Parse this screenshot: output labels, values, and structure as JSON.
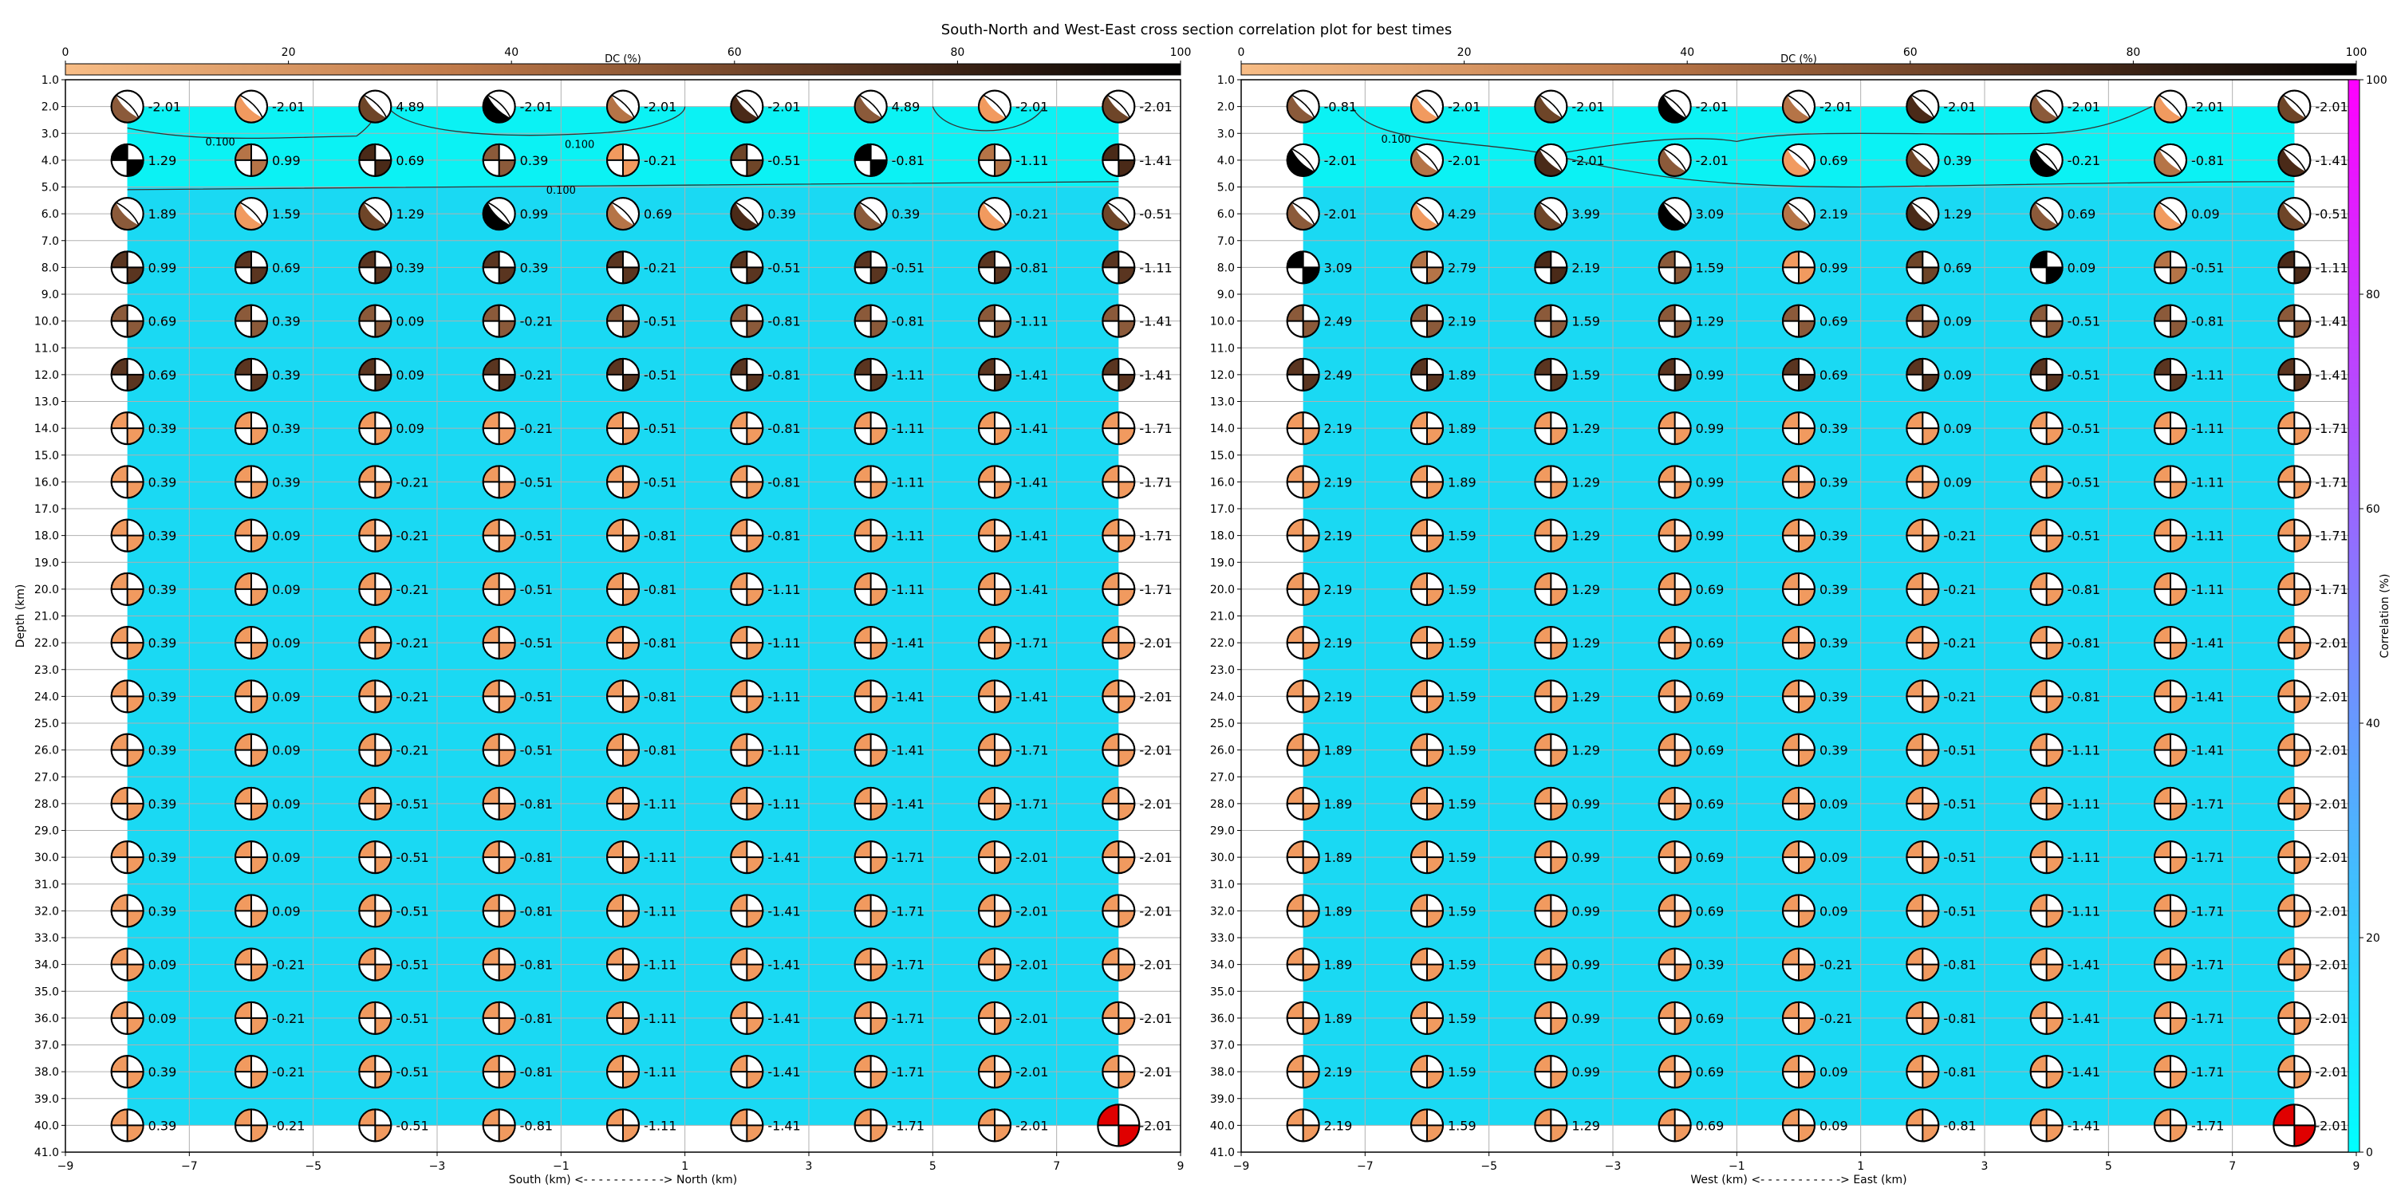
{
  "title": "South-North and West-East cross section correlation plot for best times",
  "depth_ticks": [
    "1.0",
    "2.0",
    "3.0",
    "4.0",
    "5.0",
    "6.0",
    "7.0",
    "8.0",
    "9.0",
    "10.0",
    "11.0",
    "12.0",
    "13.0",
    "14.0",
    "15.0",
    "16.0",
    "17.0",
    "18.0",
    "19.0",
    "20.0",
    "21.0",
    "22.0",
    "23.0",
    "24.0",
    "25.0",
    "26.0",
    "27.0",
    "28.0",
    "29.0",
    "30.0",
    "31.0",
    "32.0",
    "33.0",
    "34.0",
    "35.0",
    "36.0",
    "37.0",
    "38.0",
    "39.0",
    "40.0",
    "41.0"
  ],
  "x_ticks": [
    "−9",
    "−7",
    "−5",
    "−3",
    "−1",
    "1",
    "3",
    "5",
    "7",
    "9"
  ],
  "dc_colorbar": {
    "label": "DC (%)",
    "ticks": [
      "0",
      "20",
      "40",
      "60",
      "80",
      "100"
    ],
    "color_low": "#f8bd86",
    "color_high": "#000000"
  },
  "corr_colorbar": {
    "label": "Correlation (%)",
    "ticks": [
      "0",
      "20",
      "40",
      "60",
      "80",
      "100"
    ],
    "color_low": "#00ffff",
    "color_high": "#ff00ff"
  },
  "colors": {
    "field": "#1ad9f3",
    "field_high": "#0bf2f4",
    "best_solution": "#e00000",
    "grid": "#b0b0b0"
  },
  "chart_data": [
    {
      "type": "heatmap",
      "panel": "South-North",
      "xlabel": "South (km) <- - - - - - - - - - -> North (km)",
      "ylabel": "Depth (km)",
      "xlim": [
        -9,
        9
      ],
      "ylim": [
        41,
        1
      ],
      "x": [
        -8,
        -6,
        -4,
        -2,
        0,
        2,
        4,
        6,
        8
      ],
      "depths": [
        2,
        4,
        6,
        8,
        10,
        12,
        14,
        16,
        18,
        20,
        22,
        24,
        26,
        28,
        30,
        32,
        34,
        36,
        38,
        40
      ],
      "contour_labels": [
        "0.100",
        "0.100",
        "0.100"
      ],
      "best_solution": {
        "x": 8,
        "depth": 40
      },
      "time_shifts": [
        [
          "-2.01",
          "-2.01",
          "4.89",
          "-2.01",
          "-2.01",
          "-2.01",
          "4.89",
          "-2.01",
          "-2.01"
        ],
        [
          "1.29",
          "0.99",
          "0.69",
          "0.39",
          "-0.21",
          "-0.51",
          "-0.81",
          "-1.11",
          "-1.41"
        ],
        [
          "1.89",
          "1.59",
          "1.29",
          "0.99",
          "0.69",
          "0.39",
          "0.39",
          "-0.21",
          "-0.51"
        ],
        [
          "0.99",
          "0.69",
          "0.39",
          "0.39",
          "-0.21",
          "-0.51",
          "-0.51",
          "-0.81",
          "-1.11"
        ],
        [
          "0.69",
          "0.39",
          "0.09",
          "-0.21",
          "-0.51",
          "-0.81",
          "-0.81",
          "-1.11",
          "-1.41"
        ],
        [
          "0.69",
          "0.39",
          "0.09",
          "-0.21",
          "-0.51",
          "-0.81",
          "-1.11",
          "-1.41",
          "-1.41"
        ],
        [
          "0.39",
          "0.39",
          "0.09",
          "-0.21",
          "-0.51",
          "-0.81",
          "-1.11",
          "-1.41",
          "-1.71"
        ],
        [
          "0.39",
          "0.39",
          "-0.21",
          "-0.51",
          "-0.51",
          "-0.81",
          "-1.11",
          "-1.41",
          "-1.71"
        ],
        [
          "0.39",
          "0.09",
          "-0.21",
          "-0.51",
          "-0.81",
          "-0.81",
          "-1.11",
          "-1.41",
          "-1.71"
        ],
        [
          "0.39",
          "0.09",
          "-0.21",
          "-0.51",
          "-0.81",
          "-1.11",
          "-1.11",
          "-1.41",
          "-1.71"
        ],
        [
          "0.39",
          "0.09",
          "-0.21",
          "-0.51",
          "-0.81",
          "-1.11",
          "-1.41",
          "-1.71",
          "-2.01"
        ],
        [
          "0.39",
          "0.09",
          "-0.21",
          "-0.51",
          "-0.81",
          "-1.11",
          "-1.41",
          "-1.41",
          "-2.01"
        ],
        [
          "0.39",
          "0.09",
          "-0.21",
          "-0.51",
          "-0.81",
          "-1.11",
          "-1.41",
          "-1.71",
          "-2.01"
        ],
        [
          "0.39",
          "0.09",
          "-0.51",
          "-0.81",
          "-1.11",
          "-1.11",
          "-1.41",
          "-1.71",
          "-2.01"
        ],
        [
          "0.39",
          "0.09",
          "-0.51",
          "-0.81",
          "-1.11",
          "-1.41",
          "-1.71",
          "-2.01",
          "-2.01"
        ],
        [
          "0.39",
          "0.09",
          "-0.51",
          "-0.81",
          "-1.11",
          "-1.41",
          "-1.71",
          "-2.01",
          "-2.01"
        ],
        [
          "0.09",
          "-0.21",
          "-0.51",
          "-0.81",
          "-1.11",
          "-1.41",
          "-1.71",
          "-2.01",
          "-2.01"
        ],
        [
          "0.09",
          "-0.21",
          "-0.51",
          "-0.81",
          "-1.11",
          "-1.41",
          "-1.71",
          "-2.01",
          "-2.01"
        ],
        [
          "0.39",
          "-0.21",
          "-0.51",
          "-0.81",
          "-1.11",
          "-1.41",
          "-1.71",
          "-2.01",
          "-2.01"
        ],
        [
          "0.39",
          "-0.21",
          "-0.51",
          "-0.81",
          "-1.11",
          "-1.41",
          "-1.71",
          "-2.01",
          "-2.01"
        ]
      ]
    },
    {
      "type": "heatmap",
      "panel": "West-East",
      "xlabel": "West (km) <- - - - - - - - - - -> East (km)",
      "ylabel": "",
      "xlim": [
        -9,
        9
      ],
      "ylim": [
        41,
        1
      ],
      "x": [
        -8,
        -6,
        -4,
        -2,
        0,
        2,
        4,
        6,
        8
      ],
      "depths": [
        2,
        4,
        6,
        8,
        10,
        12,
        14,
        16,
        18,
        20,
        22,
        24,
        26,
        28,
        30,
        32,
        34,
        36,
        38,
        40
      ],
      "contour_labels": [
        "0.100"
      ],
      "best_solution": {
        "x": 8,
        "depth": 40
      },
      "time_shifts": [
        [
          "-0.81",
          "-2.01",
          "-2.01",
          "-2.01",
          "-2.01",
          "-2.01",
          "-2.01",
          "-2.01",
          "-2.01"
        ],
        [
          "-2.01",
          "-2.01",
          "-2.01",
          "-2.01",
          "0.69",
          "0.39",
          "-0.21",
          "-0.81",
          "-1.41"
        ],
        [
          "-2.01",
          "4.29",
          "3.99",
          "3.09",
          "2.19",
          "1.29",
          "0.69",
          "0.09",
          "-0.51"
        ],
        [
          "3.09",
          "2.79",
          "2.19",
          "1.59",
          "0.99",
          "0.69",
          "0.09",
          "-0.51",
          "-1.11"
        ],
        [
          "2.49",
          "2.19",
          "1.59",
          "1.29",
          "0.69",
          "0.09",
          "-0.51",
          "-0.81",
          "-1.41"
        ],
        [
          "2.49",
          "1.89",
          "1.59",
          "0.99",
          "0.69",
          "0.09",
          "-0.51",
          "-1.11",
          "-1.41"
        ],
        [
          "2.19",
          "1.89",
          "1.29",
          "0.99",
          "0.39",
          "0.09",
          "-0.51",
          "-1.11",
          "-1.71"
        ],
        [
          "2.19",
          "1.89",
          "1.29",
          "0.99",
          "0.39",
          "0.09",
          "-0.51",
          "-1.11",
          "-1.71"
        ],
        [
          "2.19",
          "1.59",
          "1.29",
          "0.99",
          "0.39",
          "-0.21",
          "-0.51",
          "-1.11",
          "-1.71"
        ],
        [
          "2.19",
          "1.59",
          "1.29",
          "0.69",
          "0.39",
          "-0.21",
          "-0.81",
          "-1.11",
          "-1.71"
        ],
        [
          "2.19",
          "1.59",
          "1.29",
          "0.69",
          "0.39",
          "-0.21",
          "-0.81",
          "-1.41",
          "-2.01"
        ],
        [
          "2.19",
          "1.59",
          "1.29",
          "0.69",
          "0.39",
          "-0.21",
          "-0.81",
          "-1.41",
          "-2.01"
        ],
        [
          "1.89",
          "1.59",
          "1.29",
          "0.69",
          "0.39",
          "-0.51",
          "-1.11",
          "-1.41",
          "-2.01"
        ],
        [
          "1.89",
          "1.59",
          "0.99",
          "0.69",
          "0.09",
          "-0.51",
          "-1.11",
          "-1.71",
          "-2.01"
        ],
        [
          "1.89",
          "1.59",
          "0.99",
          "0.69",
          "0.09",
          "-0.51",
          "-1.11",
          "-1.71",
          "-2.01"
        ],
        [
          "1.89",
          "1.59",
          "0.99",
          "0.69",
          "0.09",
          "-0.51",
          "-1.11",
          "-1.71",
          "-2.01"
        ],
        [
          "1.89",
          "1.59",
          "0.99",
          "0.39",
          "-0.21",
          "-0.81",
          "-1.41",
          "-1.71",
          "-2.01"
        ],
        [
          "1.89",
          "1.59",
          "0.99",
          "0.69",
          "-0.21",
          "-0.81",
          "-1.41",
          "-1.71",
          "-2.01"
        ],
        [
          "2.19",
          "1.59",
          "0.99",
          "0.69",
          "0.09",
          "-0.81",
          "-1.41",
          "-1.71",
          "-2.01"
        ],
        [
          "2.19",
          "1.59",
          "1.29",
          "0.69",
          "0.09",
          "-0.81",
          "-1.41",
          "-1.71",
          "-2.01"
        ]
      ]
    }
  ]
}
